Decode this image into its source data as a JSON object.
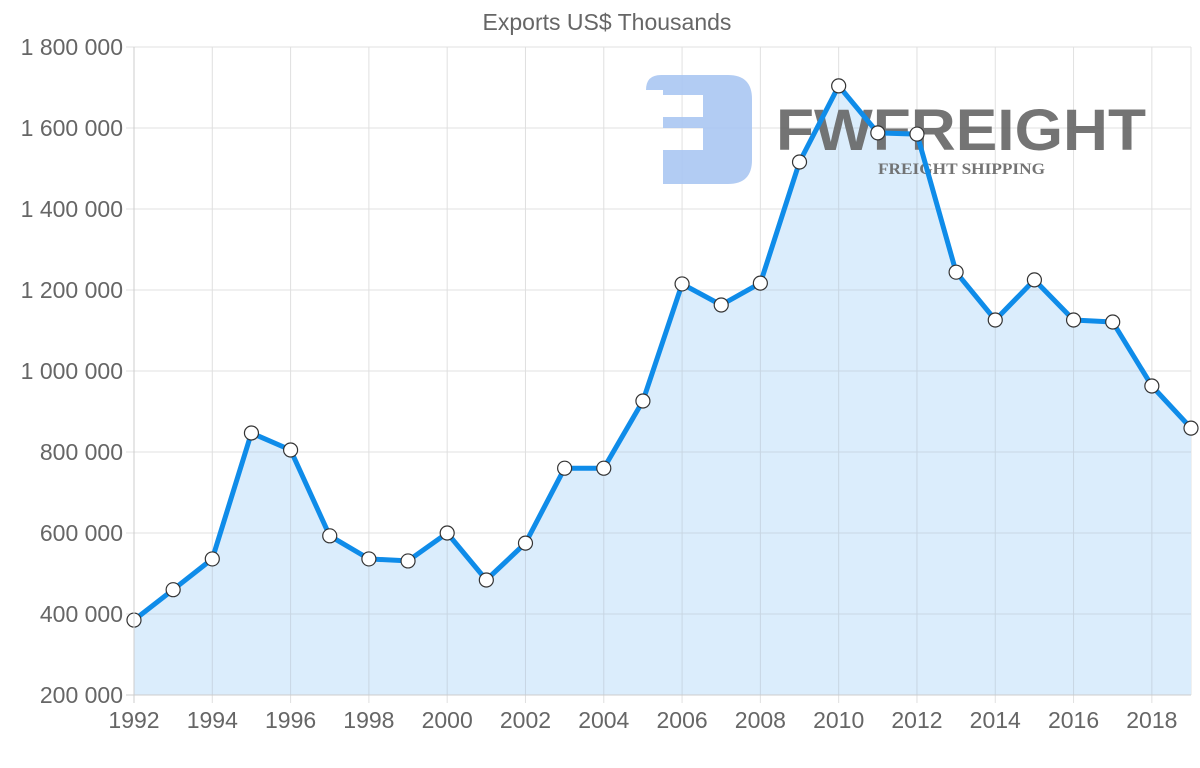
{
  "chart_data": {
    "type": "line",
    "title": "Exports US$ Thousands",
    "xlabel": "",
    "ylabel": "",
    "x": [
      1992,
      1993,
      1994,
      1995,
      1996,
      1997,
      1998,
      1999,
      2000,
      2001,
      2002,
      2003,
      2004,
      2005,
      2006,
      2007,
      2008,
      2009,
      2010,
      2011,
      2012,
      2013,
      2014,
      2015,
      2016,
      2017,
      2018,
      2019
    ],
    "series": [
      {
        "name": "Exports US$ Thousands",
        "values": [
          385000,
          460000,
          536000,
          847000,
          805000,
          593000,
          536000,
          531000,
          600000,
          484000,
          575000,
          760000,
          760000,
          926000,
          1215000,
          1163000,
          1217000,
          1516000,
          1704000,
          1588000,
          1585000,
          1244000,
          1126000,
          1225000,
          1126000,
          1121000,
          963000,
          859000
        ],
        "line_color": "#0f8ce9",
        "fill_color": "#d9ecfc",
        "marker_fill": "#ffffff",
        "marker_stroke": "#333333"
      }
    ],
    "ylim": [
      200000,
      1800000
    ],
    "xlim": [
      1992,
      2019
    ],
    "yticks": [
      200000,
      400000,
      600000,
      800000,
      1000000,
      1200000,
      1400000,
      1600000,
      1800000
    ],
    "ytick_labels": [
      "200 000",
      "400 000",
      "600 000",
      "800 000",
      "1 000 000",
      "1 200 000",
      "1 400 000",
      "1 600 000",
      "1 800 000"
    ],
    "xticks": [
      1992,
      1994,
      1996,
      1998,
      2000,
      2002,
      2004,
      2006,
      2008,
      2010,
      2012,
      2014,
      2016,
      2018
    ],
    "xtick_labels": [
      "1992",
      "1994",
      "1996",
      "1998",
      "2000",
      "2002",
      "2004",
      "2006",
      "2008",
      "2010",
      "2012",
      "2014",
      "2016",
      "2018"
    ],
    "grid": true,
    "legend": null,
    "area_fill": true
  },
  "watermark": {
    "brand": "FWFREIGHT",
    "tagline": "FREIGHT SHIPPING",
    "color": "#aac6f2"
  },
  "colors": {
    "grid": "#e0e0e0",
    "axis_text": "#666666",
    "line": "#0f8ce9",
    "fill": "#d9ecfc"
  }
}
